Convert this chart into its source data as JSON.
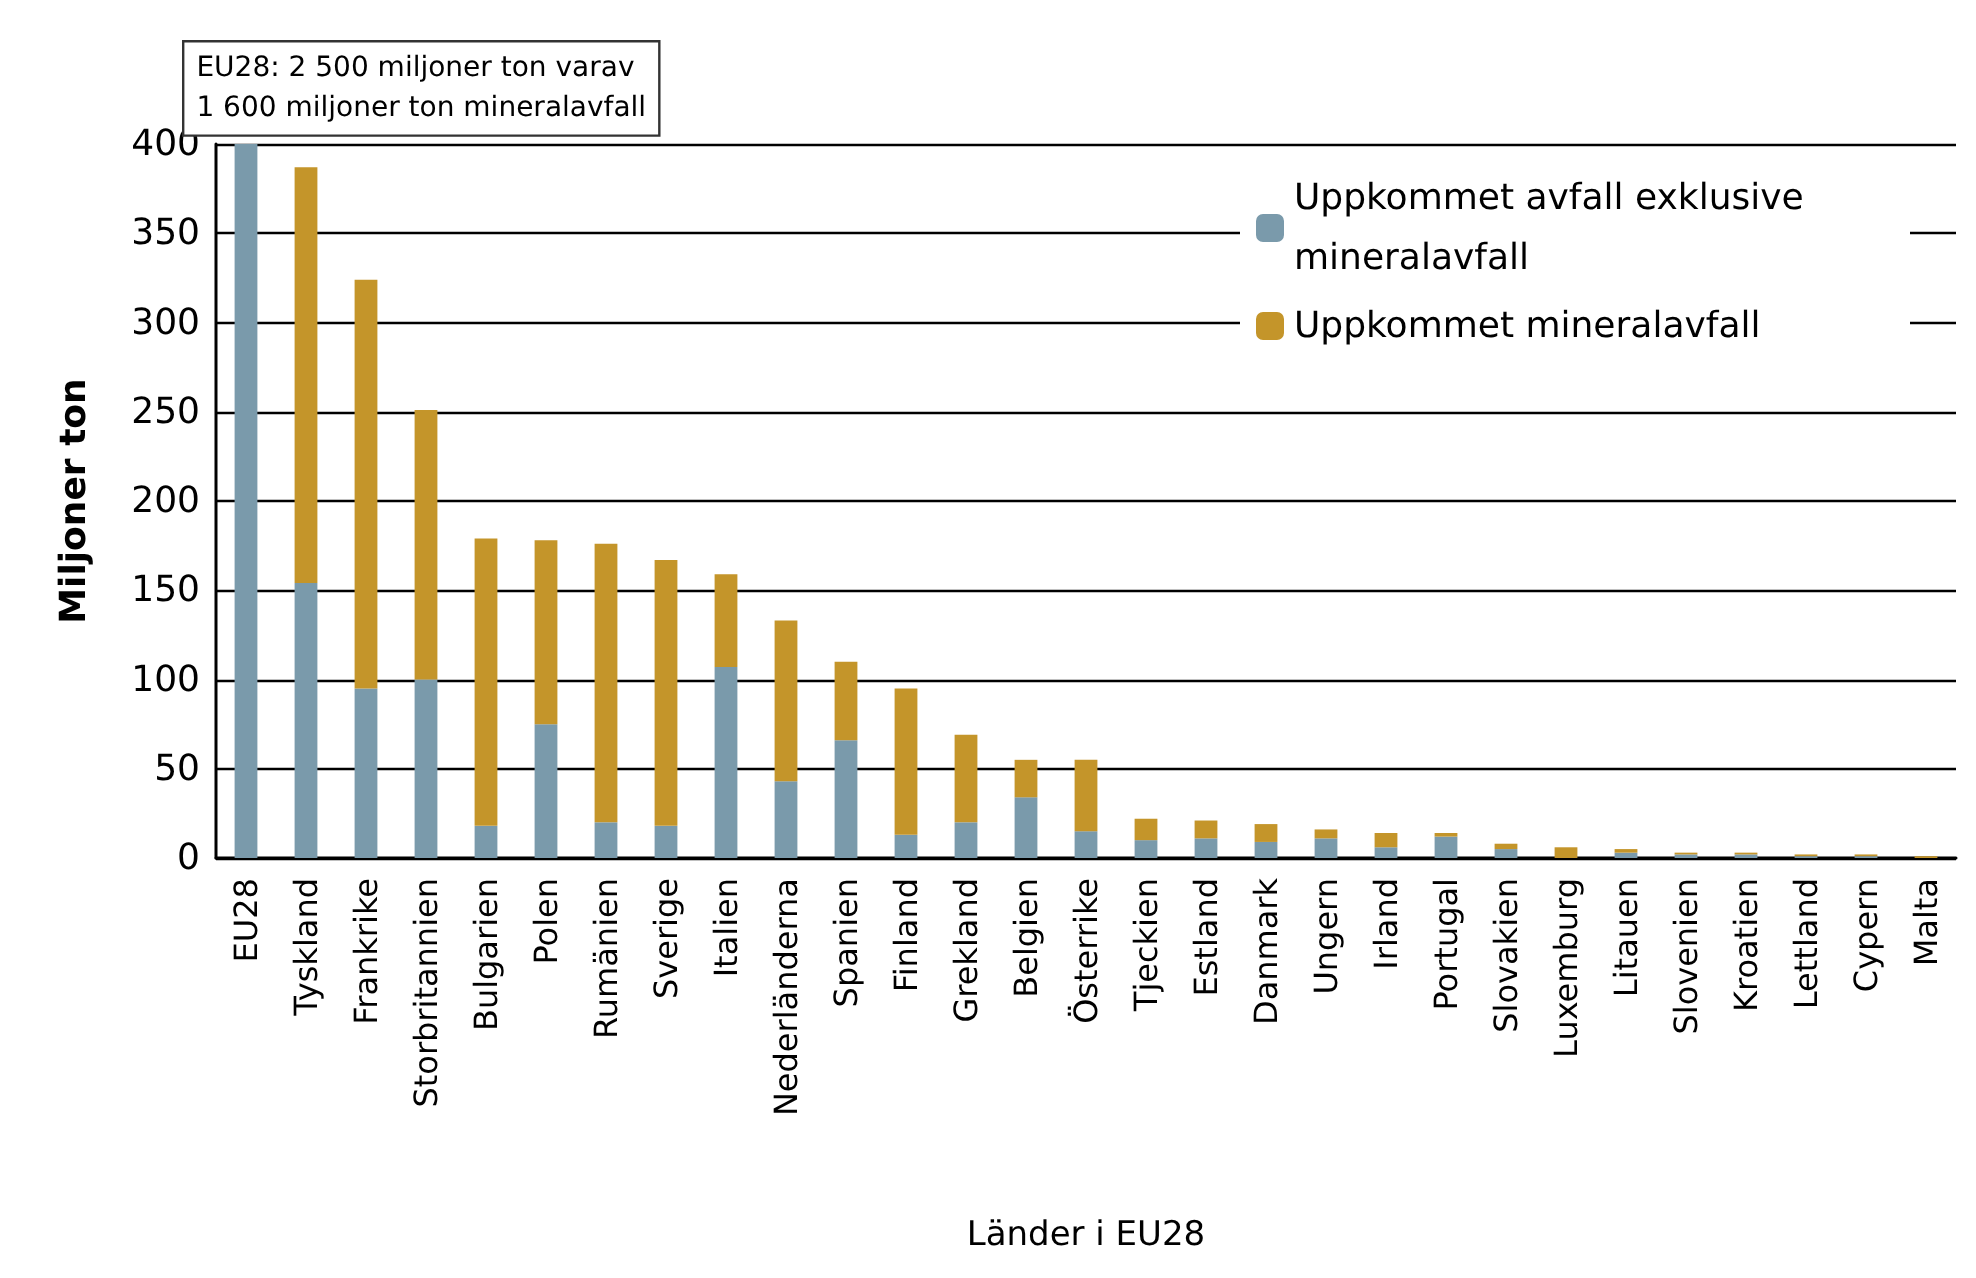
{
  "chart_data": {
    "type": "bar",
    "stacked": true,
    "xlabel": "Länder i EU28",
    "ylabel": "Miljoner ton",
    "annotations": [
      "EU28: 2 500 miljoner ton varav\n1 600 miljoner ton mineralavfall"
    ],
    "categories": [
      "EU28",
      "Tyskland",
      "Frankrike",
      "Storbritannien",
      "Bulgarien",
      "Polen",
      "Rumänien",
      "Sverige",
      "Italien",
      "Nederländerna",
      "Spanien",
      "Finland",
      "Grekland",
      "Belgien",
      "Österrike",
      "Tjeckien",
      "Estland",
      "Danmark",
      "Ungern",
      "Irland",
      "Portugal",
      "Slovakien",
      "Luxemburg",
      "Litauen",
      "Slovenien",
      "Kroatien",
      "Lettland",
      "Cypern",
      "Malta"
    ],
    "series": [
      {
        "name": "Uppkommet avfall exklusive mineralavfall",
        "color": "#7a9aab",
        "values": [
          400,
          154,
          95,
          100,
          18,
          75,
          20,
          18,
          107,
          43,
          66,
          13,
          20,
          34,
          15,
          10,
          11,
          9,
          11,
          6,
          12,
          5,
          null,
          3,
          2,
          2,
          1,
          1,
          null
        ]
      },
      {
        "name": "Uppkommet mineralavfall",
        "color": "#c4952a",
        "values": [
          null,
          233,
          229,
          151,
          161,
          103,
          156,
          149,
          52,
          90,
          44,
          82,
          49,
          21,
          40,
          12,
          10,
          10,
          5,
          8,
          2,
          3,
          6,
          2,
          1,
          1,
          1,
          1,
          1
        ]
      }
    ],
    "ylim": [
      0,
      400
    ],
    "yticks": [
      0,
      50,
      100,
      150,
      200,
      250,
      300,
      350,
      400
    ],
    "grid": "y",
    "legend": "top right"
  }
}
